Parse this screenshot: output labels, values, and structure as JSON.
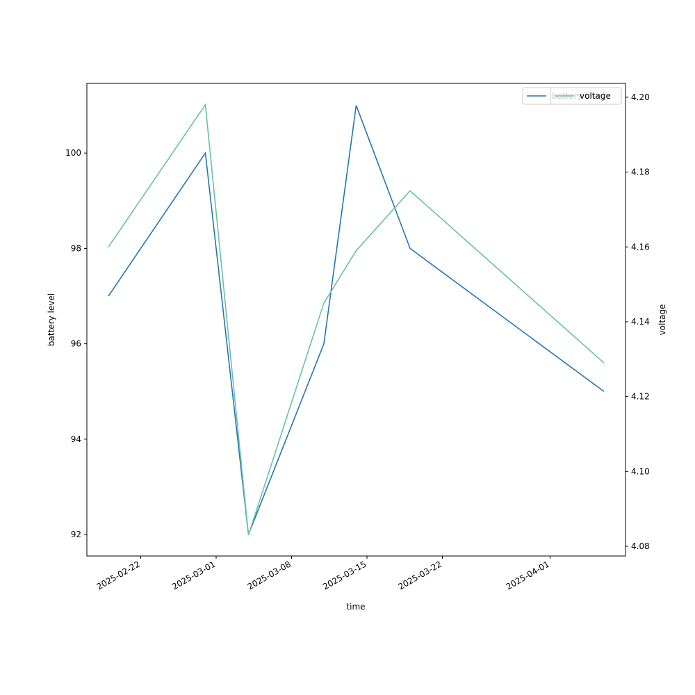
{
  "chart_data": {
    "type": "line",
    "x_label": "time",
    "y_label": "battery level",
    "y2_label": "voltage",
    "x": [
      "2025-02-19",
      "2025-02-28",
      "2025-03-04",
      "2025-03-11",
      "2025-03-14",
      "2025-03-19",
      "2025-04-06"
    ],
    "series": [
      {
        "name": "battery level",
        "color": "#1f77b4",
        "values": [
          97,
          100,
          92,
          96,
          101,
          98,
          95
        ]
      },
      {
        "name": "voltage",
        "color": "#66c2a5",
        "axis": "y2",
        "values": [
          4.16,
          4.198,
          4.083,
          4.145,
          4.159,
          4.175,
          4.129
        ]
      }
    ],
    "xlim": [
      "2025-02-17",
      "2025-04-08"
    ],
    "xticks": [
      "2025-02-22",
      "2025-03-01",
      "2025-03-08",
      "2025-03-15",
      "2025-03-22",
      "2025-04-01"
    ],
    "ylim": [
      91.55,
      101.46
    ],
    "yticks": [
      92,
      94,
      96,
      98,
      100
    ],
    "y2lim": [
      4.0774,
      4.2037
    ],
    "y2ticks": [
      {
        "value": 4.08,
        "label": "4.08"
      },
      {
        "value": 4.1,
        "label": "4.10"
      },
      {
        "value": 4.12,
        "label": "4.12"
      },
      {
        "value": 4.14,
        "label": "4.14"
      },
      {
        "value": 4.16,
        "label": "4.16"
      },
      {
        "value": 4.18,
        "label": "4.18"
      },
      {
        "value": 4.2,
        "label": "4.20"
      }
    ],
    "legend": "upper right",
    "grid": false
  }
}
